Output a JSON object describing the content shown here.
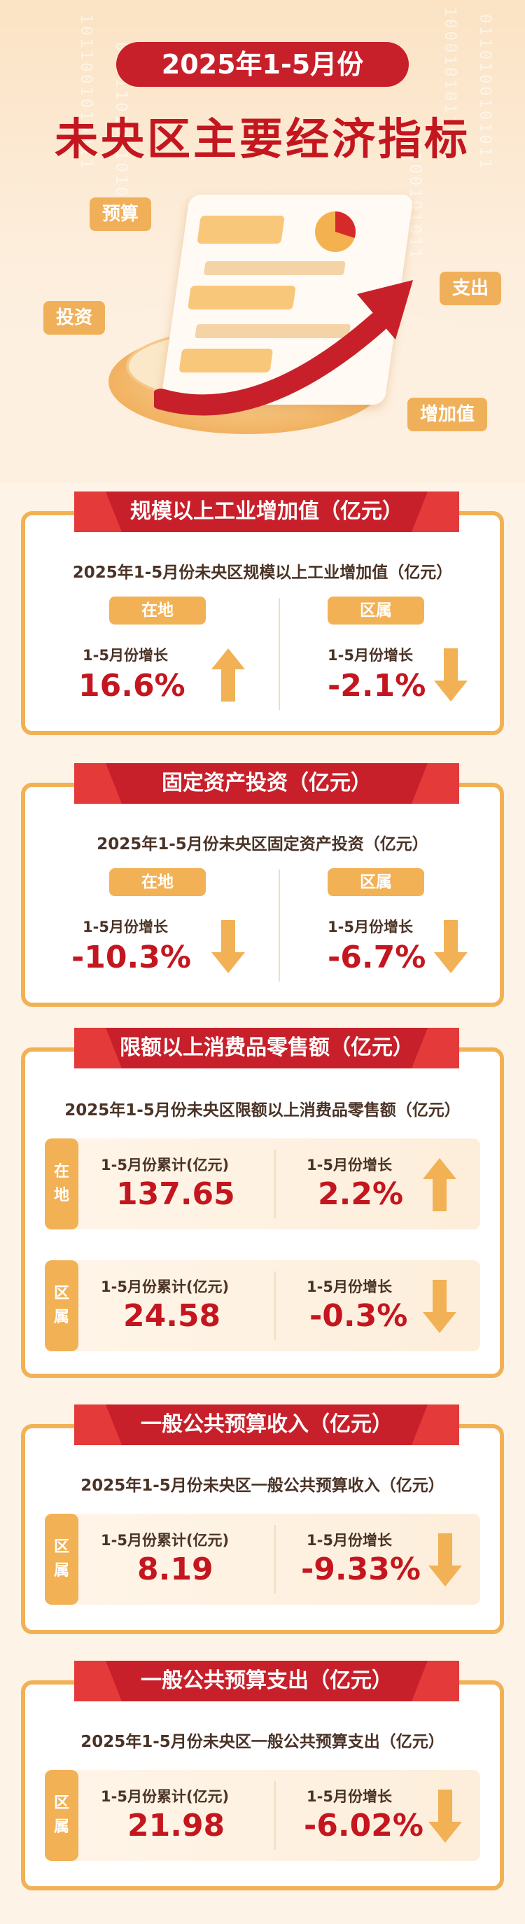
{
  "header": {
    "period_pill": "2025年1-5月份",
    "main_title": "未央区主要经济指标",
    "tags": {
      "budget": "预算",
      "investment": "投资",
      "expenditure": "支出",
      "value_added": "增加值"
    }
  },
  "industry": {
    "banner": "规模以上工业增加值（亿元）",
    "subtitle": "2025年1-5月份未央区规模以上工业增加值（亿元）",
    "left": {
      "pill": "在地",
      "label": "1-5月份增长",
      "value": "16.6%",
      "trend": "up"
    },
    "right": {
      "pill": "区属",
      "label": "1-5月份增长",
      "value": "-2.1%",
      "trend": "down"
    }
  },
  "investment": {
    "banner": "固定资产投资（亿元）",
    "subtitle": "2025年1-5月份未央区固定资产投资（亿元）",
    "left": {
      "pill": "在地",
      "label": "1-5月份增长",
      "value": "-10.3%",
      "trend": "down"
    },
    "right": {
      "pill": "区属",
      "label": "1-5月份增长",
      "value": "-6.7%",
      "trend": "down"
    }
  },
  "retail": {
    "banner": "限额以上消费品零售额（亿元）",
    "subtitle": "2025年1-5月份未央区限额以上消费品零售额（亿元）",
    "rows": [
      {
        "tab": [
          "在",
          "地"
        ],
        "cum_label": "1-5月份累计(亿元)",
        "cum_value": "137.65",
        "growth_label": "1-5月份增长",
        "growth_value": "2.2%",
        "trend": "up"
      },
      {
        "tab": [
          "区",
          "属"
        ],
        "cum_label": "1-5月份累计(亿元)",
        "cum_value": "24.58",
        "growth_label": "1-5月份增长",
        "growth_value": "-0.3%",
        "trend": "down"
      }
    ]
  },
  "revenue": {
    "banner": "一般公共预算收入（亿元）",
    "subtitle": "2025年1-5月份未央区一般公共预算收入（亿元）",
    "row": {
      "tab": [
        "区",
        "属"
      ],
      "cum_label": "1-5月份累计(亿元)",
      "cum_value": "8.19",
      "growth_label": "1-5月份增长",
      "growth_value": "-9.33%",
      "trend": "down"
    }
  },
  "expenditure": {
    "banner": "一般公共预算支出（亿元）",
    "subtitle": "2025年1-5月份未央区一般公共预算支出（亿元）",
    "row": {
      "tab": [
        "区",
        "属"
      ],
      "cum_label": "1-5月份累计(亿元)",
      "cum_value": "21.98",
      "growth_label": "1-5月份增长",
      "growth_value": "-6.02%",
      "trend": "down"
    }
  },
  "colors": {
    "red": "#c4161f",
    "orange": "#f2b155",
    "cream": "#fdf3e6"
  }
}
